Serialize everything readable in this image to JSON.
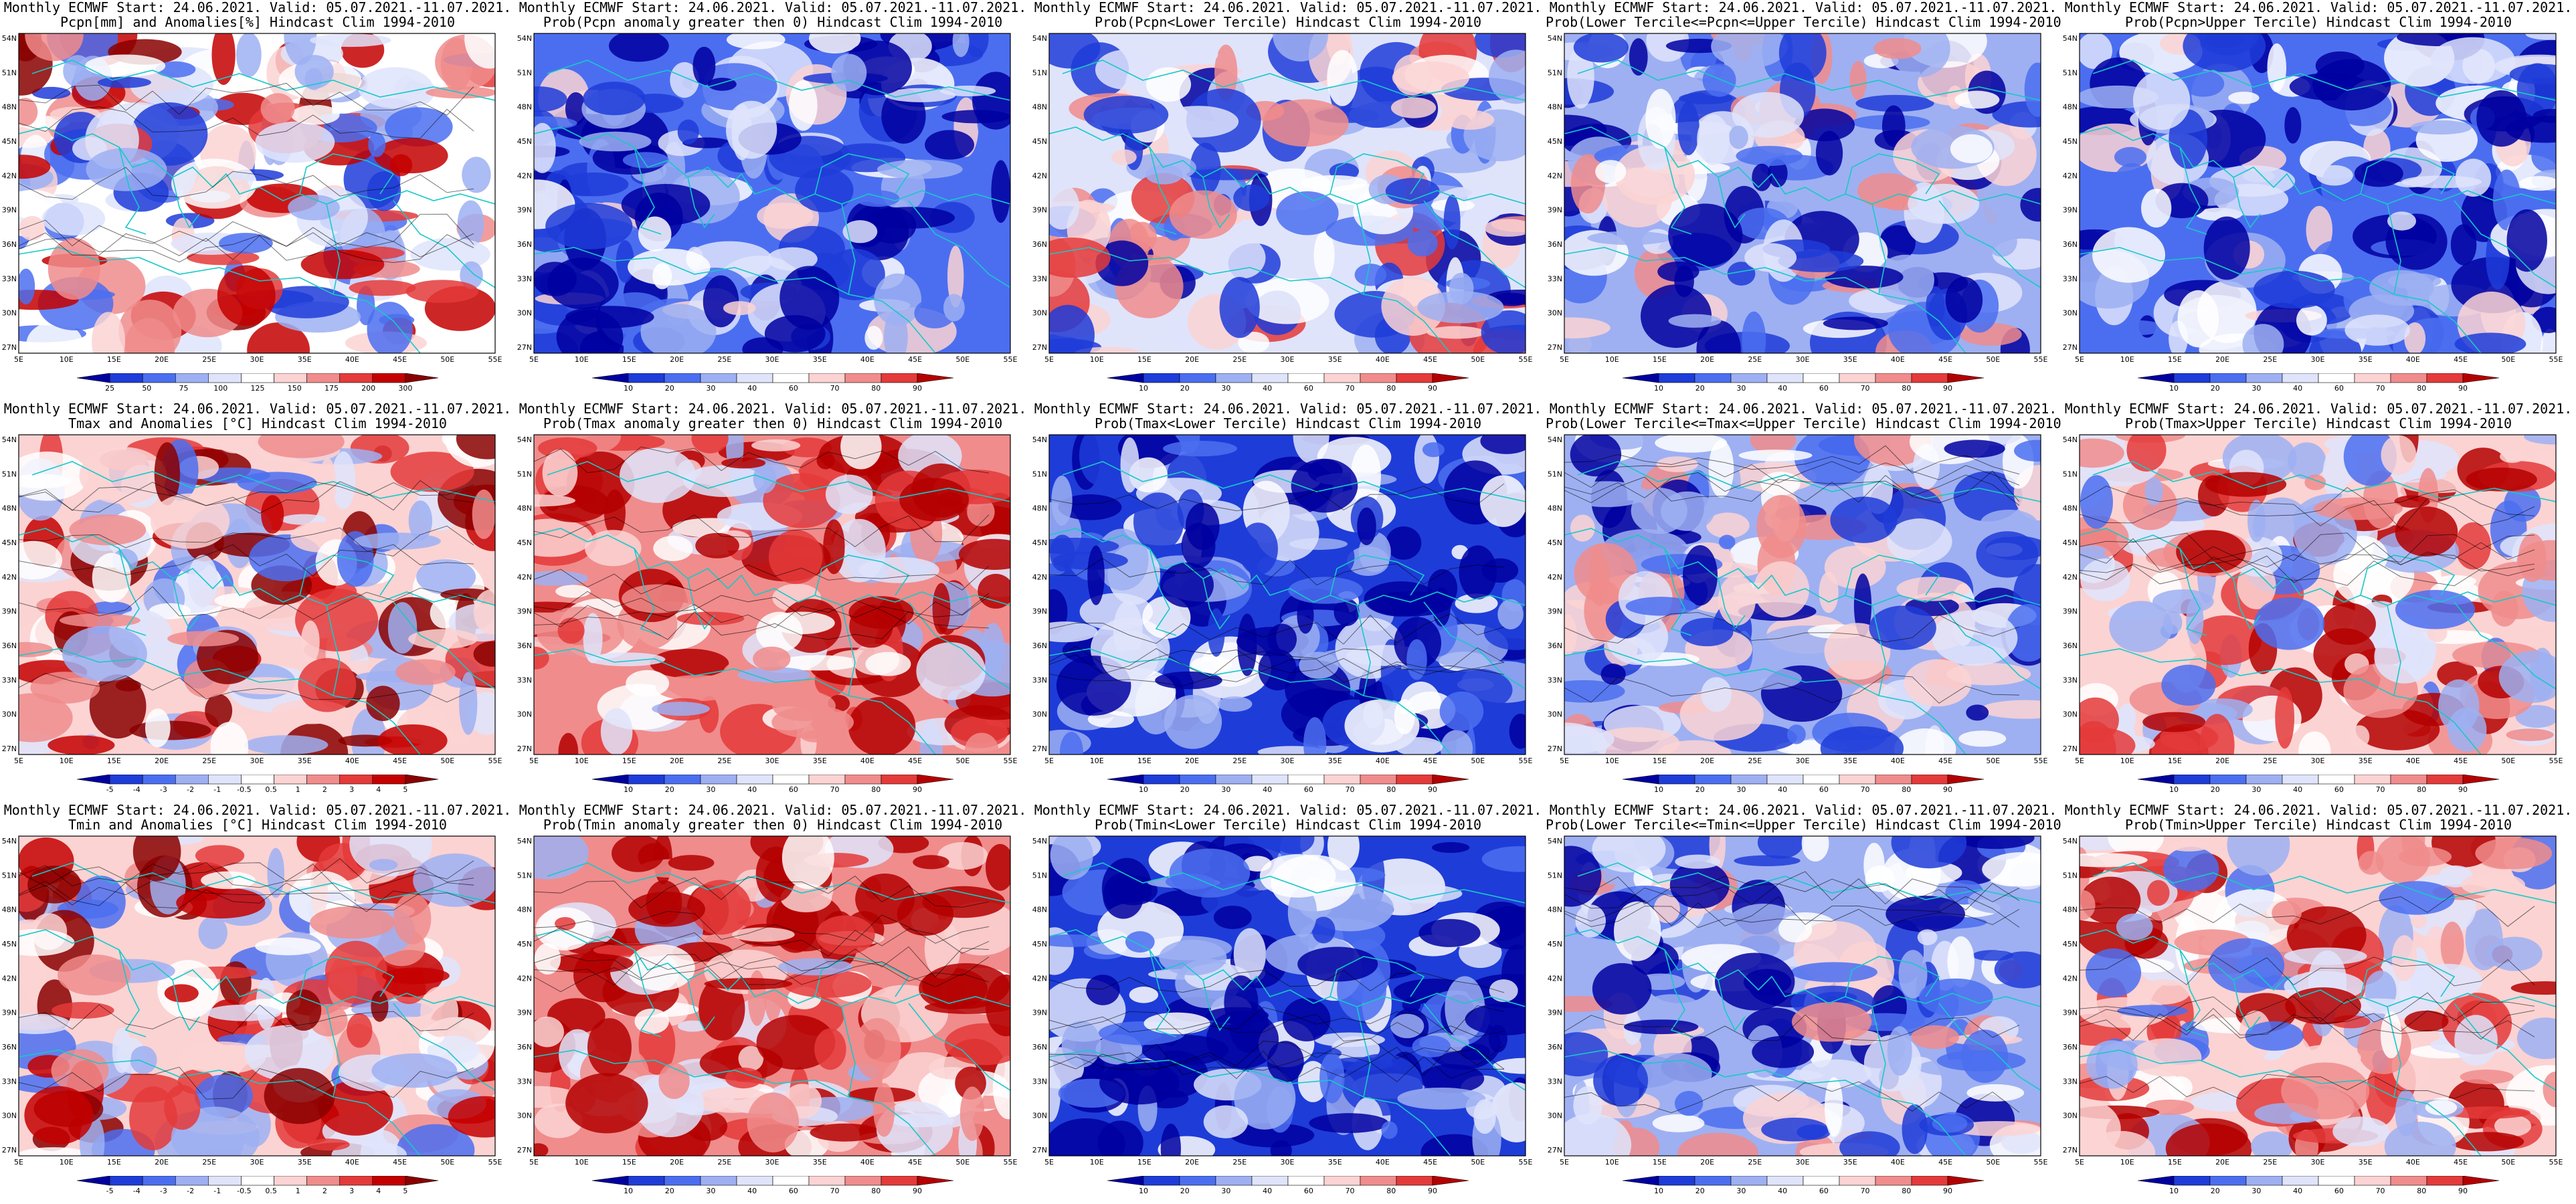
{
  "rows": [
    {
      "id": "pcpn",
      "panels": [
        {
          "title1": "Monthly ECMWF Start: 24.06.2021. Valid: 05.07.2021.-11.07.2021.",
          "title2": "Pcpn[mm] and Anomalies[%] Hindcast Clim 1994-2010",
          "scheme": "anomaly",
          "bias": 0.05,
          "ticks": [
            "25",
            "50",
            "75",
            "100",
            "125",
            "150",
            "175",
            "200",
            "300"
          ]
        },
        {
          "title1": "Monthly ECMWF Start: 24.06.2021. Valid: 05.07.2021.-11.07.2021.",
          "title2": "Prob(Pcpn anomaly greater then 0) Hindcast Clim 1994-2010",
          "scheme": "prob",
          "bias": -0.55,
          "ticks": [
            "10",
            "20",
            "30",
            "40",
            "60",
            "70",
            "80",
            "90"
          ]
        },
        {
          "title1": "Monthly ECMWF Start: 24.06.2021. Valid: 05.07.2021.-11.07.2021.",
          "title2": "Prob(Pcpn<Lower Tercile) Hindcast Clim 1994-2010",
          "scheme": "prob",
          "bias": -0.15,
          "ticks": [
            "10",
            "20",
            "30",
            "40",
            "60",
            "70",
            "80",
            "90"
          ]
        },
        {
          "title1": "Monthly ECMWF Start: 24.06.2021. Valid: 05.07.2021.-11.07.2021.",
          "title2": "Prob(Lower Tercile<=Pcpn<=Upper Tercile) Hindcast Clim 1994-2010",
          "scheme": "prob",
          "bias": -0.35,
          "ticks": [
            "10",
            "20",
            "30",
            "40",
            "60",
            "70",
            "80",
            "90"
          ]
        },
        {
          "title1": "Monthly ECMWF Start: 24.06.2021. Valid: 05.07.2021.-11.07.2021.",
          "title2": "Prob(Pcpn>Upper Tercile) Hindcast Clim 1994-2010",
          "scheme": "prob",
          "bias": -0.6,
          "ticks": [
            "10",
            "20",
            "30",
            "40",
            "60",
            "70",
            "80",
            "90"
          ]
        }
      ]
    },
    {
      "id": "tmax",
      "panels": [
        {
          "title1": "Monthly ECMWF Start: 24.06.2021. Valid: 05.07.2021.-11.07.2021.",
          "title2": "Tmax and Anomalies [°C] Hindcast Clim 1994-2010",
          "scheme": "anomaly",
          "bias": 0.3,
          "ticks": [
            "-5",
            "-4",
            "-3",
            "-2",
            "-1",
            "-0.5",
            "0.5",
            "1",
            "2",
            "3",
            "4",
            "5"
          ]
        },
        {
          "title1": "Monthly ECMWF Start: 24.06.2021. Valid: 05.07.2021.-11.07.2021.",
          "title2": "Prob(Tmax anomaly greater then 0) Hindcast Clim 1994-2010",
          "scheme": "prob",
          "bias": 0.6,
          "ticks": [
            "10",
            "20",
            "30",
            "40",
            "60",
            "70",
            "80",
            "90"
          ]
        },
        {
          "title1": "Monthly ECMWF Start: 24.06.2021. Valid: 05.07.2021.-11.07.2021.",
          "title2": "Prob(Tmax<Lower Tercile) Hindcast Clim 1994-2010",
          "scheme": "prob",
          "bias": -0.75,
          "ticks": [
            "10",
            "20",
            "30",
            "40",
            "60",
            "70",
            "80",
            "90"
          ]
        },
        {
          "title1": "Monthly ECMWF Start: 24.06.2021. Valid: 05.07.2021.-11.07.2021.",
          "title2": "Prob(Lower Tercile<=Tmax<=Upper Tercile) Hindcast Clim 1994-2010",
          "scheme": "prob",
          "bias": -0.3,
          "ticks": [
            "10",
            "20",
            "30",
            "40",
            "60",
            "70",
            "80",
            "90"
          ]
        },
        {
          "title1": "Monthly ECMWF Start: 24.06.2021. Valid: 05.07.2021.-11.07.2021.",
          "title2": "Prob(Tmax>Upper Tercile) Hindcast Clim 1994-2010",
          "scheme": "prob",
          "bias": 0.35,
          "ticks": [
            "10",
            "20",
            "30",
            "40",
            "60",
            "70",
            "80",
            "90"
          ]
        }
      ]
    },
    {
      "id": "tmin",
      "panels": [
        {
          "title1": "Monthly ECMWF Start: 24.06.2021. Valid: 05.07.2021.-11.07.2021.",
          "title2": "Tmin and Anomalies [°C] Hindcast Clim 1994-2010",
          "scheme": "anomaly",
          "bias": 0.25,
          "ticks": [
            "-5",
            "-4",
            "-3",
            "-2",
            "-1",
            "-0.5",
            "0.5",
            "1",
            "2",
            "3",
            "4",
            "5"
          ]
        },
        {
          "title1": "Monthly ECMWF Start: 24.06.2021. Valid: 05.07.2021.-11.07.2021.",
          "title2": "Prob(Tmin anomaly greater then 0) Hindcast Clim 1994-2010",
          "scheme": "prob",
          "bias": 0.7,
          "ticks": [
            "10",
            "20",
            "30",
            "40",
            "60",
            "70",
            "80",
            "90"
          ]
        },
        {
          "title1": "Monthly ECMWF Start: 24.06.2021. Valid: 05.07.2021.-11.07.2021.",
          "title2": "Prob(Tmin<Lower Tercile) Hindcast Clim 1994-2010",
          "scheme": "prob",
          "bias": -0.85,
          "ticks": [
            "10",
            "20",
            "30",
            "40",
            "60",
            "70",
            "80",
            "90"
          ]
        },
        {
          "title1": "Monthly ECMWF Start: 24.06.2021. Valid: 05.07.2021.-11.07.2021.",
          "title2": "Prob(Lower Tercile<=Tmin<=Upper Tercile) Hindcast Clim 1994-2010",
          "scheme": "prob",
          "bias": -0.3,
          "ticks": [
            "10",
            "20",
            "30",
            "40",
            "60",
            "70",
            "80",
            "90"
          ]
        },
        {
          "title1": "Monthly ECMWF Start: 24.06.2021. Valid: 05.07.2021.-11.07.2021.",
          "title2": "Prob(Tmin>Upper Tercile) Hindcast Clim 1994-2010",
          "scheme": "prob",
          "bias": 0.35,
          "ticks": [
            "10",
            "20",
            "30",
            "40",
            "60",
            "70",
            "80",
            "90"
          ]
        }
      ]
    }
  ],
  "lat_labels": [
    "54N",
    "51N",
    "48N",
    "45N",
    "42N",
    "39N",
    "36N",
    "33N",
    "30N",
    "27N"
  ],
  "lon_labels": [
    "5E",
    "10E",
    "15E",
    "20E",
    "25E",
    "30E",
    "35E",
    "40E",
    "45E",
    "50E",
    "55E"
  ],
  "colors": {
    "prob": [
      "#0000a0",
      "#1e3cd8",
      "#4b6ef0",
      "#9eb0f2",
      "#dfe4fb",
      "#ffffff",
      "#fbd3d3",
      "#f08c8c",
      "#e43a3a",
      "#b40000"
    ],
    "anomaly": [
      "#0000a0",
      "#1e3cd8",
      "#4b6ef0",
      "#9eb0f2",
      "#dfe4fb",
      "#ffffff",
      "#fbd3d3",
      "#f08c8c",
      "#e43a3a",
      "#c40000",
      "#8a0000"
    ],
    "coast": "#17c9c9",
    "contour": "#000000"
  }
}
